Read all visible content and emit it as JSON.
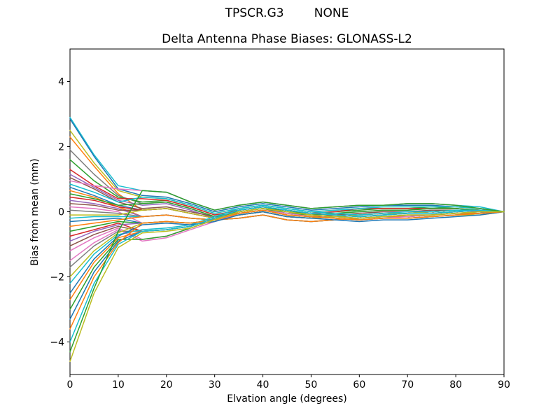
{
  "header": {
    "title": "TPSCR.G3        NONE",
    "subtitle": "Delta Antenna Phase Biases: GLONASS-L2"
  },
  "chart_data": {
    "type": "line",
    "title": "TPSCR.G3        NONE",
    "subtitle": "Delta Antenna Phase Biases: GLONASS-L2",
    "xlabel": "Elvation angle (degrees)",
    "ylabel": "Bias from mean (mm)",
    "xlim": [
      0,
      90
    ],
    "ylim": [
      -5,
      5
    ],
    "xticks": [
      0,
      10,
      20,
      30,
      40,
      50,
      60,
      70,
      80,
      90
    ],
    "yticks": [
      -4,
      -2,
      0,
      2,
      4
    ],
    "ytick_labels": [
      "−4",
      "−2",
      "0",
      "2",
      "4"
    ],
    "grid": false,
    "legend": "none",
    "line_width": 1.5,
    "axis_color": "#000000",
    "palette": [
      "#1f77b4",
      "#ff7f0e",
      "#2ca02c",
      "#d62728",
      "#9467bd",
      "#8c564b",
      "#e377c2",
      "#7f7f7f",
      "#bcbd22",
      "#17becf"
    ],
    "x": [
      0,
      5,
      10,
      15,
      20,
      25,
      30,
      35,
      40,
      45,
      50,
      55,
      60,
      65,
      70,
      75,
      80,
      85,
      90
    ],
    "series": [
      {
        "name": "line-01",
        "color": 9,
        "values": [
          2.9,
          1.75,
          0.8,
          0.65,
          0.6,
          0.3,
          0.05,
          0.2,
          0.3,
          0.2,
          0.1,
          0.15,
          0.2,
          0.2,
          0.25,
          0.25,
          0.2,
          0.15,
          0
        ]
      },
      {
        "name": "line-02",
        "color": 0,
        "values": [
          2.85,
          1.7,
          0.7,
          0.5,
          0.45,
          0.25,
          0,
          0.15,
          0.25,
          0.15,
          0.05,
          0.1,
          0.15,
          0.2,
          0.2,
          0.2,
          0.15,
          0.1,
          0
        ]
      },
      {
        "name": "line-03",
        "color": 8,
        "values": [
          2.5,
          1.5,
          0.65,
          0.45,
          0.4,
          0.2,
          -0.05,
          0.1,
          0.2,
          0.1,
          0,
          0.05,
          0.1,
          0.15,
          0.15,
          0.15,
          0.15,
          0.1,
          0
        ]
      },
      {
        "name": "line-04",
        "color": 1,
        "values": [
          2.3,
          1.4,
          0.55,
          0.05,
          0.1,
          -0.05,
          -0.2,
          -0.1,
          0,
          -0.15,
          -0.2,
          -0.15,
          -0.1,
          -0.05,
          -0.05,
          0,
          0.05,
          0.05,
          0
        ]
      },
      {
        "name": "line-05",
        "color": 7,
        "values": [
          1.9,
          1.15,
          0.5,
          0.25,
          0.3,
          0.1,
          -0.15,
          0,
          0.1,
          -0.05,
          -0.1,
          -0.05,
          0,
          0.05,
          0.05,
          0.1,
          0.1,
          0.05,
          0
        ]
      },
      {
        "name": "line-06",
        "color": 2,
        "values": [
          1.6,
          0.95,
          0.45,
          0.3,
          0.35,
          0.15,
          -0.1,
          0.05,
          0.15,
          0,
          -0.05,
          0,
          0.05,
          0.1,
          0.1,
          0.15,
          0.1,
          0.05,
          0
        ]
      },
      {
        "name": "line-07",
        "color": 3,
        "values": [
          1.3,
          0.8,
          0.4,
          0.4,
          0.35,
          0.15,
          -0.1,
          0.05,
          0.15,
          0.05,
          -0.05,
          0,
          0.1,
          0.1,
          0.1,
          0.1,
          0.1,
          0.05,
          0
        ]
      },
      {
        "name": "line-08",
        "color": 4,
        "values": [
          1.15,
          0.75,
          0.35,
          0.2,
          0.25,
          0.05,
          -0.2,
          -0.05,
          0.05,
          -0.1,
          -0.15,
          -0.1,
          -0.05,
          0,
          0,
          0.05,
          0.05,
          0,
          0
        ]
      },
      {
        "name": "line-09",
        "color": 5,
        "values": [
          1.05,
          0.7,
          0.3,
          0.1,
          0.15,
          0,
          -0.15,
          -0.05,
          0.05,
          -0.1,
          -0.15,
          -0.1,
          -0.05,
          0,
          0,
          0.05,
          0.05,
          0.05,
          0
        ]
      },
      {
        "name": "line-10",
        "color": 6,
        "values": [
          0.95,
          0.8,
          0.7,
          0.65,
          0.6,
          0.3,
          0.05,
          0.2,
          0.3,
          0.2,
          0.1,
          0.15,
          0.2,
          0.2,
          0.25,
          0.25,
          0.2,
          0.1,
          0
        ]
      },
      {
        "name": "line-11",
        "color": 9,
        "values": [
          0.85,
          0.6,
          0.3,
          0.45,
          0.4,
          0.2,
          -0.05,
          0.1,
          0.2,
          0.1,
          0,
          0.05,
          0.1,
          0.15,
          0.15,
          0.15,
          0.15,
          0.1,
          0
        ]
      },
      {
        "name": "line-12",
        "color": 0,
        "values": [
          0.75,
          0.5,
          0.2,
          0.05,
          0.1,
          -0.05,
          -0.2,
          -0.1,
          0,
          -0.15,
          -0.2,
          -0.15,
          -0.1,
          -0.05,
          -0.05,
          0,
          0.05,
          0.05,
          0
        ]
      },
      {
        "name": "line-13",
        "color": 1,
        "values": [
          0.65,
          0.45,
          0.15,
          -0.15,
          -0.1,
          -0.2,
          -0.25,
          -0.2,
          -0.1,
          -0.25,
          -0.3,
          -0.25,
          -0.2,
          -0.15,
          -0.15,
          -0.1,
          -0.05,
          -0.05,
          0
        ]
      },
      {
        "name": "line-14",
        "color": 2,
        "values": [
          0.55,
          0.4,
          0.2,
          0.25,
          0.3,
          0.1,
          -0.15,
          0,
          0.1,
          -0.05,
          -0.1,
          -0.05,
          0,
          0.05,
          0.05,
          0.1,
          0.1,
          0.05,
          0
        ]
      },
      {
        "name": "line-15",
        "color": 3,
        "values": [
          0.45,
          0.35,
          0.15,
          0.05,
          0.1,
          -0.05,
          -0.2,
          -0.1,
          0,
          -0.15,
          -0.2,
          -0.15,
          -0.1,
          -0.05,
          -0.05,
          0,
          0.05,
          0.05,
          0
        ]
      },
      {
        "name": "line-16",
        "color": 4,
        "values": [
          0.35,
          0.25,
          0.1,
          -0.15,
          -0.1,
          -0.2,
          -0.25,
          -0.2,
          -0.1,
          -0.25,
          -0.3,
          -0.25,
          -0.2,
          -0.15,
          -0.15,
          -0.1,
          -0.05,
          -0.05,
          0
        ]
      },
      {
        "name": "line-17",
        "color": 5,
        "values": [
          0.25,
          0.2,
          0.05,
          0.05,
          0.1,
          -0.05,
          -0.2,
          -0.1,
          0,
          -0.15,
          -0.2,
          -0.15,
          -0.1,
          -0.05,
          -0.05,
          0,
          0.05,
          0.05,
          0
        ]
      },
      {
        "name": "line-18",
        "color": 6,
        "values": [
          0.15,
          0.1,
          0,
          -0.35,
          -0.3,
          -0.35,
          -0.25,
          -0.05,
          0.05,
          -0.1,
          -0.15,
          -0.2,
          -0.25,
          -0.2,
          -0.2,
          -0.15,
          -0.1,
          -0.05,
          0
        ]
      },
      {
        "name": "line-19",
        "color": 7,
        "values": [
          0.05,
          0,
          -0.05,
          -0.15,
          -0.1,
          -0.2,
          -0.25,
          -0.2,
          -0.1,
          -0.25,
          -0.3,
          -0.25,
          -0.2,
          -0.15,
          -0.15,
          -0.1,
          -0.05,
          -0.05,
          0
        ]
      },
      {
        "name": "line-20",
        "color": 8,
        "values": [
          -0.1,
          -0.1,
          -0.1,
          0.05,
          0.1,
          -0.05,
          -0.2,
          -0.1,
          0,
          -0.15,
          -0.2,
          -0.15,
          -0.1,
          -0.05,
          -0.05,
          0,
          0.05,
          0.05,
          0
        ]
      },
      {
        "name": "line-21",
        "color": 9,
        "values": [
          -0.2,
          -0.15,
          -0.15,
          -0.15,
          -0.1,
          -0.2,
          -0.25,
          -0.2,
          -0.1,
          -0.25,
          -0.3,
          -0.25,
          -0.2,
          -0.15,
          -0.15,
          -0.1,
          -0.05,
          -0.05,
          0
        ]
      },
      {
        "name": "line-22",
        "color": 0,
        "values": [
          -0.3,
          -0.25,
          -0.2,
          -0.35,
          -0.3,
          -0.35,
          -0.25,
          -0.05,
          0.05,
          -0.1,
          -0.15,
          -0.2,
          -0.25,
          -0.2,
          -0.2,
          -0.15,
          -0.1,
          -0.05,
          0
        ]
      },
      {
        "name": "line-23",
        "color": 1,
        "values": [
          -0.45,
          -0.35,
          -0.25,
          -0.15,
          -0.1,
          -0.2,
          -0.25,
          -0.2,
          -0.1,
          -0.25,
          -0.3,
          -0.25,
          -0.2,
          -0.15,
          -0.15,
          -0.1,
          -0.05,
          -0.05,
          0
        ]
      },
      {
        "name": "line-24",
        "color": 2,
        "values": [
          -0.6,
          -0.45,
          -0.3,
          -0.35,
          -0.3,
          -0.35,
          -0.25,
          -0.05,
          0.05,
          -0.1,
          -0.15,
          -0.2,
          -0.25,
          -0.2,
          -0.2,
          -0.15,
          -0.1,
          -0.05,
          0
        ]
      },
      {
        "name": "line-25",
        "color": 3,
        "values": [
          -0.75,
          -0.55,
          -0.35,
          -0.6,
          -0.55,
          -0.45,
          -0.2,
          0.05,
          0.15,
          0.05,
          -0.05,
          -0.1,
          -0.15,
          -0.1,
          -0.05,
          -0.05,
          0,
          0.05,
          0
        ]
      },
      {
        "name": "line-26",
        "color": 4,
        "values": [
          -0.9,
          -0.6,
          -0.4,
          -0.35,
          -0.3,
          -0.35,
          -0.25,
          -0.05,
          0.05,
          -0.1,
          -0.15,
          -0.2,
          -0.25,
          -0.2,
          -0.2,
          -0.15,
          -0.1,
          -0.05,
          0
        ]
      },
      {
        "name": "line-27",
        "color": 5,
        "values": [
          -1.05,
          -0.7,
          -0.45,
          -0.6,
          -0.55,
          -0.45,
          -0.2,
          0.05,
          0.15,
          0.05,
          -0.05,
          -0.1,
          -0.15,
          -0.1,
          -0.05,
          -0.05,
          0,
          0.05,
          0
        ]
      },
      {
        "name": "line-28",
        "color": 6,
        "values": [
          -1.2,
          -0.8,
          -0.5,
          -0.85,
          -0.75,
          -0.5,
          -0.25,
          0,
          0.1,
          0,
          -0.1,
          -0.15,
          -0.2,
          -0.15,
          -0.1,
          -0.1,
          -0.05,
          0,
          0
        ]
      },
      {
        "name": "line-29",
        "color": 6,
        "values": [
          -1.5,
          -0.95,
          -0.55,
          -0.9,
          -0.8,
          -0.55,
          -0.3,
          -0.05,
          0.05,
          -0.05,
          -0.15,
          -0.2,
          -0.25,
          -0.2,
          -0.15,
          -0.1,
          -0.05,
          0,
          0
        ]
      },
      {
        "name": "line-30",
        "color": 7,
        "values": [
          -1.7,
          -1.05,
          -0.6,
          -0.6,
          -0.55,
          -0.45,
          -0.2,
          0.05,
          0.15,
          0.05,
          -0.05,
          -0.1,
          -0.15,
          -0.1,
          -0.05,
          -0.05,
          0,
          0.05,
          0
        ]
      },
      {
        "name": "line-31",
        "color": 8,
        "values": [
          -2.0,
          -1.2,
          -0.65,
          -0.35,
          -0.3,
          -0.35,
          -0.25,
          -0.05,
          0.05,
          -0.1,
          -0.15,
          -0.2,
          -0.25,
          -0.2,
          -0.2,
          -0.15,
          -0.1,
          -0.1,
          0
        ]
      },
      {
        "name": "line-32",
        "color": 9,
        "values": [
          -2.2,
          -1.3,
          -0.7,
          -0.55,
          -0.5,
          -0.4,
          -0.15,
          0.1,
          0.2,
          0.1,
          0,
          -0.05,
          -0.1,
          -0.05,
          0,
          0,
          0.05,
          0.05,
          0
        ]
      },
      {
        "name": "line-33",
        "color": 0,
        "values": [
          -2.5,
          -1.45,
          -0.75,
          -0.4,
          -0.35,
          -0.4,
          -0.3,
          -0.1,
          0,
          -0.15,
          -0.2,
          -0.25,
          -0.3,
          -0.25,
          -0.25,
          -0.2,
          -0.15,
          -0.1,
          0
        ]
      },
      {
        "name": "line-34",
        "color": 1,
        "values": [
          -2.7,
          -1.55,
          -0.8,
          -0.6,
          -0.55,
          -0.45,
          -0.2,
          0.05,
          0.15,
          0.05,
          -0.05,
          -0.1,
          -0.15,
          -0.1,
          -0.05,
          -0.05,
          0,
          0.05,
          0
        ]
      },
      {
        "name": "line-35",
        "color": 2,
        "values": [
          -3.0,
          -1.7,
          -0.85,
          -0.85,
          -0.75,
          -0.5,
          -0.25,
          0,
          0.1,
          0,
          -0.1,
          -0.15,
          -0.2,
          -0.15,
          -0.1,
          -0.1,
          -0.05,
          0,
          0
        ]
      },
      {
        "name": "line-36",
        "color": 0,
        "values": [
          -3.3,
          -1.85,
          -0.9,
          -0.6,
          -0.55,
          -0.45,
          -0.2,
          0.05,
          0.15,
          0.05,
          -0.05,
          -0.1,
          -0.15,
          -0.1,
          -0.05,
          -0.05,
          0,
          0.05,
          0
        ]
      },
      {
        "name": "line-37",
        "color": 1,
        "values": [
          -3.6,
          -2.0,
          -0.95,
          -0.35,
          -0.3,
          -0.35,
          -0.25,
          -0.05,
          0.05,
          -0.1,
          -0.15,
          -0.2,
          -0.25,
          -0.2,
          -0.2,
          -0.15,
          -0.1,
          -0.05,
          0
        ]
      },
      {
        "name": "line-38",
        "color": 9,
        "values": [
          -4.0,
          -2.2,
          -1.0,
          -0.6,
          -0.55,
          -0.45,
          -0.2,
          0.05,
          0.15,
          0.05,
          -0.05,
          -0.1,
          -0.15,
          -0.1,
          -0.05,
          -0.05,
          0,
          0.05,
          0
        ]
      },
      {
        "name": "line-39",
        "color": 2,
        "values": [
          -4.3,
          -2.35,
          -0.6,
          0.65,
          0.6,
          0.3,
          0.05,
          0.2,
          0.3,
          0.2,
          0.1,
          0.15,
          0.2,
          0.2,
          0.25,
          0.25,
          0.2,
          0.1,
          0
        ]
      },
      {
        "name": "line-40",
        "color": 8,
        "values": [
          -4.6,
          -2.5,
          -1.1,
          -0.65,
          -0.6,
          -0.5,
          -0.25,
          0,
          0.1,
          0,
          -0.1,
          -0.15,
          -0.2,
          -0.15,
          -0.1,
          -0.1,
          -0.05,
          0,
          0
        ]
      }
    ]
  }
}
